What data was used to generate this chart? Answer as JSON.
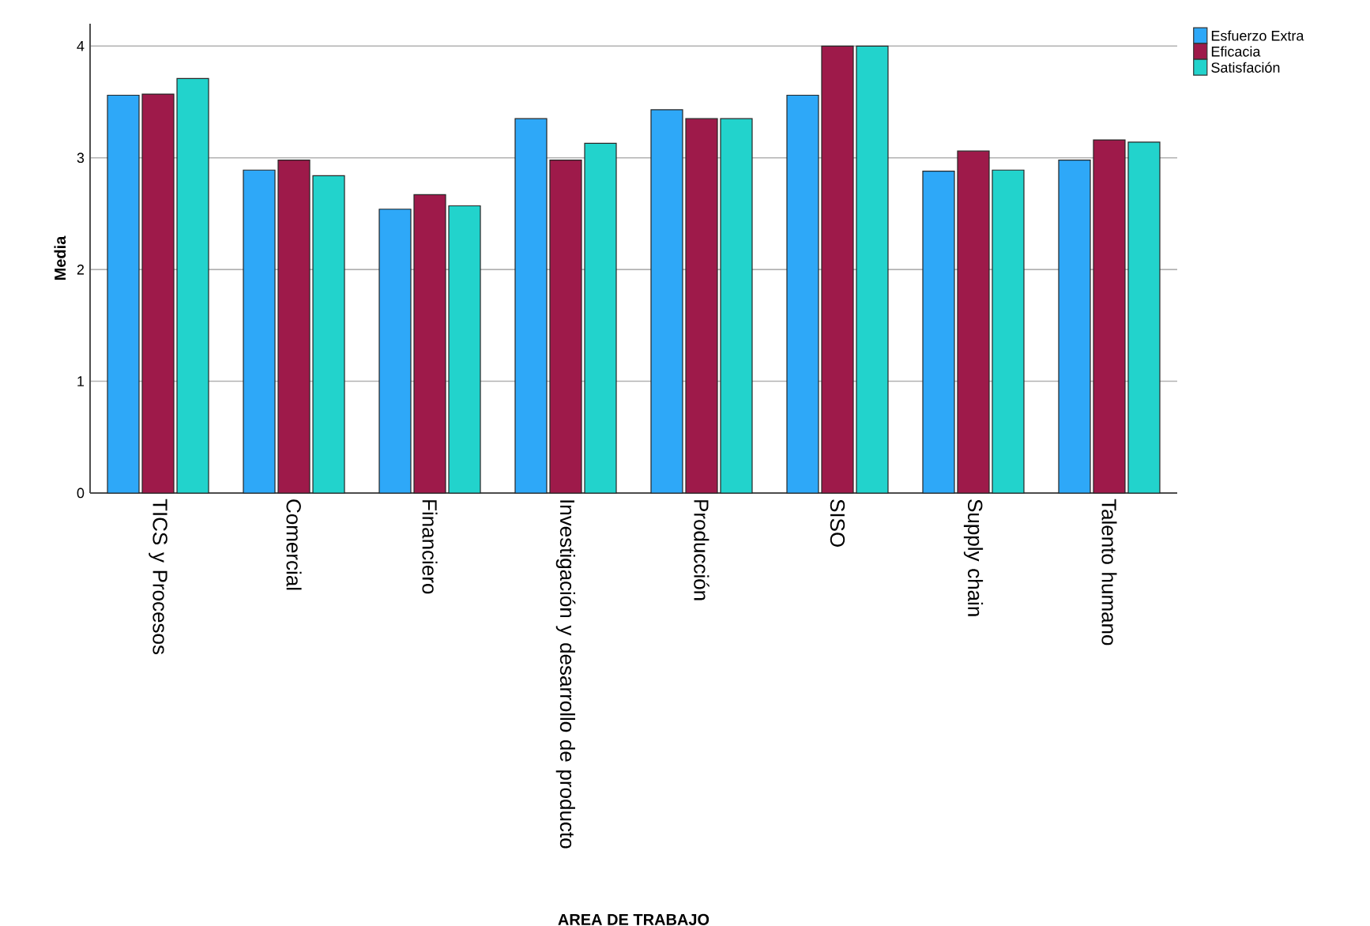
{
  "chart_data": {
    "type": "bar",
    "xlabel": "AREA DE TRABAJO",
    "ylabel": "Media",
    "categories": [
      "TICS y Procesos",
      "Comercial",
      "Financiero",
      "Investigación y desarrollo de producto",
      "Producción",
      "SISO",
      "Supply chain",
      "Talento humano"
    ],
    "series": [
      {
        "name": "Esfuerzo Extra",
        "color": "#2ea8f8",
        "values": [
          3.56,
          2.89,
          2.54,
          3.35,
          3.43,
          3.56,
          2.88,
          2.98
        ]
      },
      {
        "name": "Eficacia",
        "color": "#9e1a4a",
        "values": [
          3.57,
          2.98,
          2.67,
          2.98,
          3.35,
          4.0,
          3.06,
          3.16
        ]
      },
      {
        "name": "Satisfación",
        "color": "#22d3cc",
        "values": [
          3.71,
          2.84,
          2.57,
          3.13,
          3.35,
          4.0,
          2.89,
          3.14
        ]
      }
    ],
    "ylim": [
      0,
      4.2
    ],
    "yticks": [
      0,
      1,
      2,
      3,
      4
    ],
    "grid": "y",
    "legend": "top right"
  }
}
